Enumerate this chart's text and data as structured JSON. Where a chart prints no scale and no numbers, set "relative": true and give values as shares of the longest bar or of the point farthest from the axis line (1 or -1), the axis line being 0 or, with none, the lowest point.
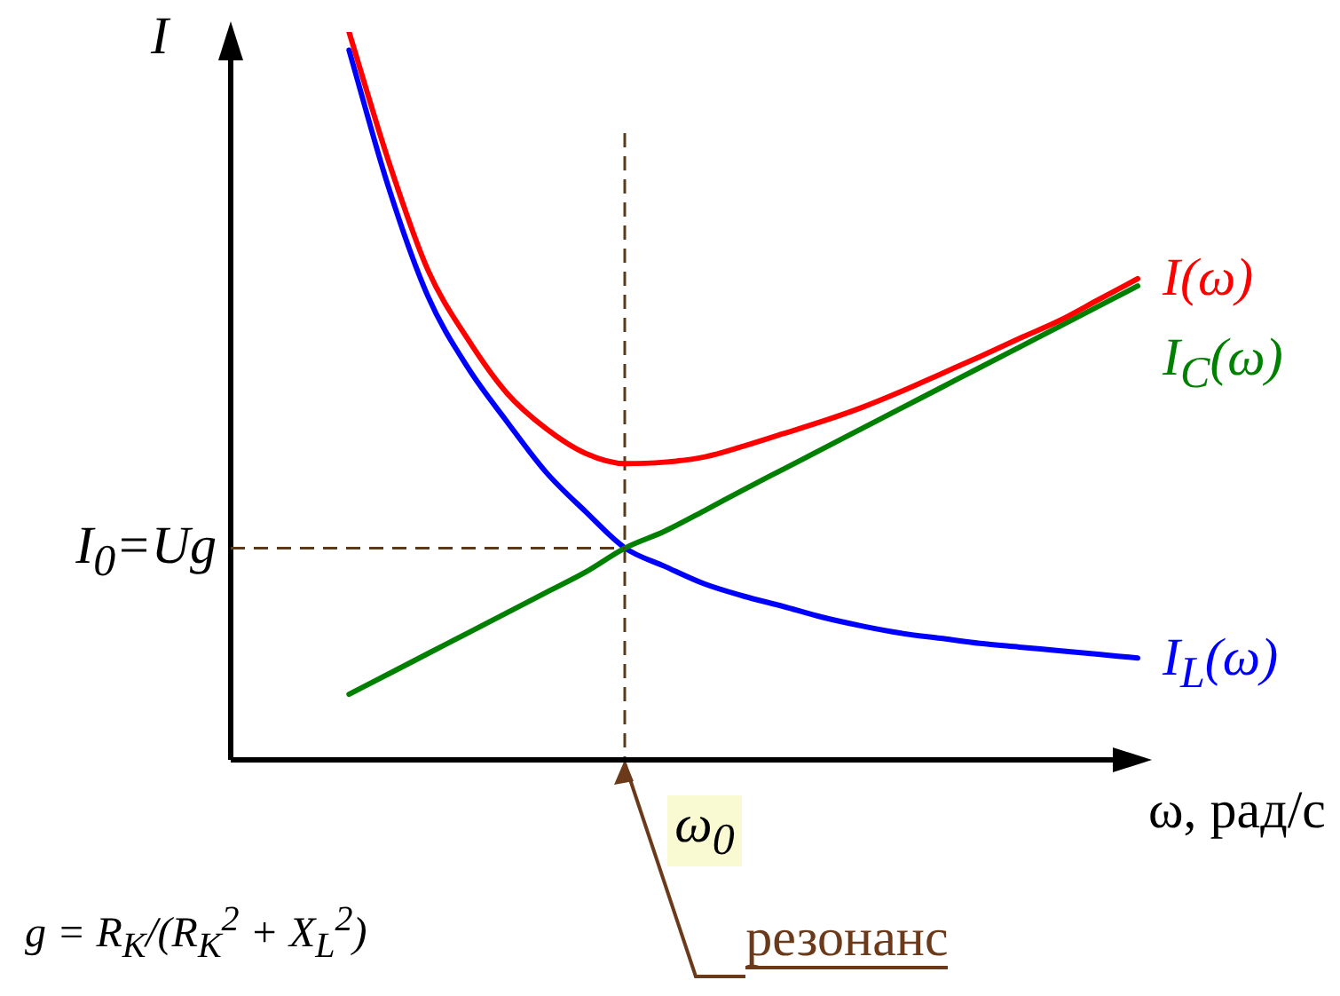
{
  "chart_data": {
    "type": "line",
    "relative": true,
    "ylabel": "I",
    "xlabel": "ω, рад/с",
    "categories": [
      null,
      null,
      null,
      null,
      null,
      null,
      null,
      null,
      null,
      null,
      null,
      null,
      null,
      null,
      null,
      null,
      null,
      null,
      null,
      null,
      null,
      null,
      null,
      null
    ],
    "series": [
      {
        "name": "I(ω)",
        "color": "#ff0000",
        "values": [
          null,
          null,
          null,
          1.0,
          0.823,
          0.673,
          0.579,
          0.504,
          0.455,
          0.421,
          0.407,
          0.409,
          0.416,
          0.431,
          0.448,
          0.465,
          0.484,
          0.506,
          0.53,
          0.554,
          0.579,
          0.603,
          0.632,
          0.661
        ]
      },
      {
        "name": "I$_{C}$(ω)",
        "color": "#008000",
        "values": [
          null,
          null,
          null,
          0.09,
          0.118,
          0.146,
          0.174,
          0.202,
          0.23,
          0.258,
          0.291,
          0.314,
          0.342,
          0.371,
          0.399,
          0.427,
          0.455,
          0.483,
          0.511,
          0.539,
          0.567,
          0.595,
          0.623,
          0.651
        ]
      },
      {
        "name": "I$_{L}$(ω)",
        "color": "#0000ff",
        "values": [
          null,
          null,
          null,
          0.975,
          0.787,
          0.637,
          0.54,
          0.465,
          0.395,
          0.341,
          0.291,
          0.266,
          0.242,
          0.225,
          0.211,
          0.196,
          0.184,
          0.174,
          0.167,
          0.16,
          0.155,
          0.15,
          0.145,
          0.14
        ]
      }
    ],
    "ref_lines": [
      {
        "axis": "y",
        "value": 0.291,
        "label": "I$_{0}$=Ug",
        "color": "#5a3a1a",
        "line_style": "dashed"
      }
    ],
    "annotations": [
      "g = R$_{К}$/(R$_{К}$$^{2}$ + X$_{L}$$^{2}$)",
      "ω$_{0}$",
      "резонанс"
    ]
  }
}
